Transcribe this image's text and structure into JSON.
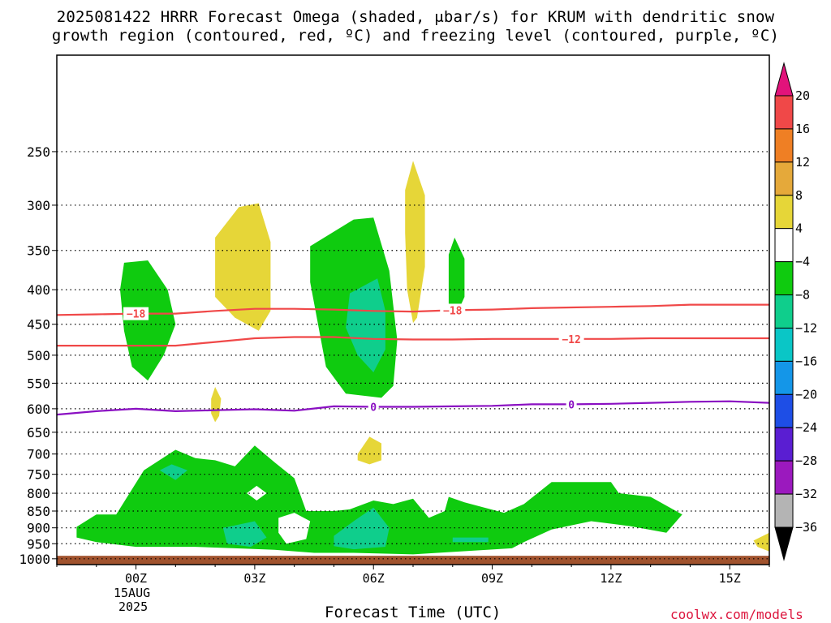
{
  "title": {
    "line1": "2025081422 HRRR Forecast Omega (shaded, μbar/s) for KRUM with dendritic snow",
    "line2": "growth region (contoured, red, ºC) and freezing level (contoured, purple, ºC)"
  },
  "xlabel": "Forecast Time (UTC)",
  "source": "coolwx.com/models",
  "date_label": [
    "15AUG",
    "2025"
  ],
  "chart_data": {
    "type": "contour",
    "title": "2025081422 HRRR Forecast Omega (shaded, μbar/s) for KRUM with dendritic snow growth region (contoured, red, ºC) and freezing level (contoured, purple, ºC)",
    "xlabel": "Forecast Time (UTC)",
    "ylabel": "",
    "x_axis": {
      "unit": "hours since 2025-08-15 00Z",
      "range": [
        -2,
        16
      ],
      "ticks": [
        {
          "x": 0,
          "label": "00Z"
        },
        {
          "x": 3,
          "label": "03Z"
        },
        {
          "x": 6,
          "label": "06Z"
        },
        {
          "x": 9,
          "label": "09Z"
        },
        {
          "x": 12,
          "label": "12Z"
        },
        {
          "x": 15,
          "label": "15Z"
        }
      ]
    },
    "y_axis": {
      "unit": "hPa",
      "log_scale": true,
      "inverted": true,
      "range": [
        1020,
        180
      ],
      "ticks": [
        250,
        300,
        350,
        400,
        450,
        500,
        550,
        600,
        650,
        700,
        750,
        800,
        850,
        900,
        950,
        1000
      ]
    },
    "grid": "dotted horizontal at pressure ticks",
    "colorbar": {
      "labels": [
        20,
        16,
        12,
        8,
        4,
        -4,
        -8,
        -12,
        -16,
        -20,
        -24,
        -28,
        -32,
        -36
      ],
      "colors": [
        "#e2137b",
        "#f04848",
        "#ef7f24",
        "#e5a93a",
        "#e6d638",
        "#ffffff",
        "#0fcb0f",
        "#0fce8c",
        "#0ac6c6",
        "#1496e8",
        "#1e4ee6",
        "#5a1ed2",
        "#9b19be",
        "#b4b4b4",
        "#000000"
      ]
    },
    "ground_color": "#a0522d",
    "omega_regions": [
      {
        "level": "-4..-8",
        "color": "#0fcb0f",
        "polygon": [
          [
            -0.3,
            365
          ],
          [
            0.3,
            362
          ],
          [
            0.8,
            400
          ],
          [
            1.0,
            450
          ],
          [
            0.7,
            500
          ],
          [
            0.3,
            545
          ],
          [
            -0.1,
            520
          ],
          [
            -0.3,
            460
          ],
          [
            -0.4,
            400
          ]
        ]
      },
      {
        "level": "4..8",
        "color": "#e6d638",
        "polygon": [
          [
            2.0,
            335
          ],
          [
            2.6,
            302
          ],
          [
            3.1,
            298
          ],
          [
            3.4,
            340
          ],
          [
            3.4,
            430
          ],
          [
            3.1,
            460
          ],
          [
            2.5,
            440
          ],
          [
            2.0,
            410
          ]
        ]
      },
      {
        "level": "4..8",
        "color": "#e6d638",
        "polygon": [
          [
            1.9,
            580
          ],
          [
            2.0,
            557
          ],
          [
            2.15,
            580
          ],
          [
            2.1,
            615
          ],
          [
            2.0,
            628
          ],
          [
            1.9,
            610
          ]
        ]
      },
      {
        "level": "-4..-8",
        "color": "#0fcb0f",
        "polygon": [
          [
            4.4,
            345
          ],
          [
            5.5,
            315
          ],
          [
            6.0,
            313
          ],
          [
            6.4,
            375
          ],
          [
            6.6,
            475
          ],
          [
            6.5,
            555
          ],
          [
            6.2,
            578
          ],
          [
            5.3,
            570
          ],
          [
            4.8,
            520
          ],
          [
            4.6,
            450
          ],
          [
            4.4,
            390
          ]
        ]
      },
      {
        "level": "-8..-12",
        "color": "#0fce8c",
        "polygon": [
          [
            5.4,
            405
          ],
          [
            6.1,
            385
          ],
          [
            6.3,
            430
          ],
          [
            6.3,
            490
          ],
          [
            6.0,
            530
          ],
          [
            5.6,
            500
          ],
          [
            5.3,
            455
          ]
        ]
      },
      {
        "level": "4..8",
        "color": "#e6d638",
        "polygon": [
          [
            6.8,
            285
          ],
          [
            7.0,
            258
          ],
          [
            7.3,
            290
          ],
          [
            7.3,
            370
          ],
          [
            7.1,
            440
          ],
          [
            7.0,
            448
          ],
          [
            6.85,
            400
          ],
          [
            6.8,
            330
          ]
        ]
      },
      {
        "level": "-4..-8",
        "color": "#0fcb0f",
        "polygon": [
          [
            7.9,
            355
          ],
          [
            8.05,
            335
          ],
          [
            8.3,
            360
          ],
          [
            8.3,
            410
          ],
          [
            8.1,
            435
          ],
          [
            7.9,
            420
          ]
        ]
      },
      {
        "level": "4..8",
        "color": "#e6d638",
        "polygon": [
          [
            5.6,
            700
          ],
          [
            5.9,
            660
          ],
          [
            6.2,
            675
          ],
          [
            6.2,
            715
          ],
          [
            5.9,
            725
          ],
          [
            5.6,
            715
          ]
        ]
      },
      {
        "level": "4..8",
        "color": "#e6d638",
        "polygon": [
          [
            15.6,
            940
          ],
          [
            16,
            915
          ],
          [
            16,
            975
          ],
          [
            15.7,
            960
          ]
        ]
      },
      {
        "level": "-4..-8",
        "color": "#0fcb0f",
        "polygon": [
          [
            -1.5,
            897
          ],
          [
            -1.0,
            860
          ],
          [
            -0.5,
            860
          ],
          [
            0.2,
            740
          ],
          [
            1.0,
            690
          ],
          [
            1.5,
            710
          ],
          [
            2.0,
            715
          ],
          [
            2.5,
            730
          ],
          [
            3.0,
            680
          ],
          [
            3.5,
            720
          ],
          [
            4.0,
            760
          ],
          [
            4.3,
            850
          ],
          [
            5.0,
            850
          ],
          [
            5.4,
            845
          ],
          [
            6.0,
            820
          ],
          [
            6.5,
            830
          ],
          [
            7.0,
            815
          ],
          [
            7.4,
            870
          ],
          [
            7.8,
            850
          ],
          [
            7.9,
            810
          ],
          [
            8.3,
            825
          ],
          [
            8.8,
            840
          ],
          [
            9.3,
            855
          ],
          [
            9.8,
            830
          ],
          [
            10.5,
            770
          ],
          [
            12.0,
            770
          ],
          [
            12.2,
            800
          ],
          [
            13.0,
            810
          ],
          [
            13.8,
            860
          ],
          [
            13.4,
            915
          ],
          [
            12.5,
            895
          ],
          [
            11.5,
            880
          ],
          [
            10.5,
            905
          ],
          [
            9.8,
            945
          ],
          [
            9.5,
            965
          ],
          [
            7.0,
            985
          ],
          [
            5.5,
            980
          ],
          [
            4.5,
            980
          ],
          [
            3.5,
            970
          ],
          [
            2.5,
            965
          ],
          [
            1.5,
            960
          ],
          [
            0.0,
            960
          ],
          [
            -1.0,
            945
          ],
          [
            -1.5,
            930
          ]
        ]
      },
      {
        "level": "-8..-12",
        "color": "#0fce8c",
        "polygon": [
          [
            0.6,
            740
          ],
          [
            0.9,
            725
          ],
          [
            1.3,
            740
          ],
          [
            1.0,
            765
          ]
        ]
      },
      {
        "level": "-8..-12",
        "color": "#0fce8c",
        "polygon": [
          [
            2.2,
            900
          ],
          [
            3.0,
            880
          ],
          [
            3.3,
            930
          ],
          [
            2.9,
            960
          ],
          [
            2.3,
            950
          ]
        ]
      },
      {
        "level": "-8..-12",
        "color": "#0fce8c",
        "polygon": [
          [
            5.0,
            925
          ],
          [
            5.5,
            880
          ],
          [
            6.0,
            840
          ],
          [
            6.4,
            900
          ],
          [
            6.3,
            960
          ],
          [
            5.5,
            968
          ],
          [
            5.0,
            958
          ]
        ]
      },
      {
        "level": "-8..-12",
        "color": "#0fce8c",
        "polygon": [
          [
            8.0,
            930
          ],
          [
            8.9,
            930
          ],
          [
            8.9,
            945
          ],
          [
            8.0,
            945
          ]
        ]
      }
    ],
    "omega_holes": [
      {
        "note": "white gap",
        "polygon": [
          [
            2.8,
            800
          ],
          [
            3.05,
            780
          ],
          [
            3.3,
            800
          ],
          [
            3.05,
            820
          ]
        ]
      },
      {
        "note": "white gap",
        "polygon": [
          [
            3.6,
            870
          ],
          [
            4.0,
            855
          ],
          [
            4.4,
            880
          ],
          [
            4.3,
            935
          ],
          [
            3.8,
            950
          ],
          [
            3.6,
            915
          ]
        ]
      }
    ],
    "series": [
      {
        "name": "-18",
        "kind": "dendritic snow growth region",
        "color": "#f04848",
        "unit": "ºC",
        "x": [
          -2,
          -1,
          0,
          1,
          2,
          3,
          4,
          5,
          6,
          7,
          8,
          9,
          10,
          11,
          12,
          13,
          14,
          15,
          16
        ],
        "y": [
          436,
          435,
          434,
          434,
          430,
          427,
          427,
          428,
          430,
          431,
          429,
          428,
          426,
          425,
          424,
          423,
          421,
          421,
          421
        ]
      },
      {
        "name": "-12",
        "kind": "dendritic snow growth region",
        "color": "#f04848",
        "unit": "ºC",
        "x": [
          -2,
          -1,
          0,
          1,
          2,
          3,
          4,
          5,
          6,
          7,
          8,
          9,
          10,
          11,
          12,
          13,
          14,
          15,
          16
        ],
        "y": [
          484,
          484,
          484,
          484,
          478,
          472,
          470,
          470,
          473,
          474,
          474,
          473,
          473,
          473,
          473,
          472,
          472,
          472,
          472
        ]
      },
      {
        "name": "0",
        "kind": "freezing level",
        "color": "#8a0fc2",
        "unit": "ºC",
        "x": [
          -2,
          -1,
          0,
          1,
          2,
          3,
          4,
          5,
          6,
          7,
          8,
          9,
          10,
          11,
          12,
          13,
          14,
          15,
          16
        ],
        "y": [
          612,
          605,
          600,
          605,
          603,
          601,
          604,
          595,
          596,
          596,
          595,
          594,
          591,
          591,
          590,
          588,
          586,
          585,
          588
        ]
      }
    ],
    "contour_labels": [
      {
        "text": "-18",
        "series": "-18",
        "x": 0.0
      },
      {
        "text": "-18",
        "series": "-18",
        "x": 8.0
      },
      {
        "text": "-12",
        "series": "-12",
        "x": 11.0
      },
      {
        "text": "0",
        "series": "0",
        "x": 6.0
      },
      {
        "text": "0",
        "series": "0",
        "x": 11.0
      }
    ]
  }
}
